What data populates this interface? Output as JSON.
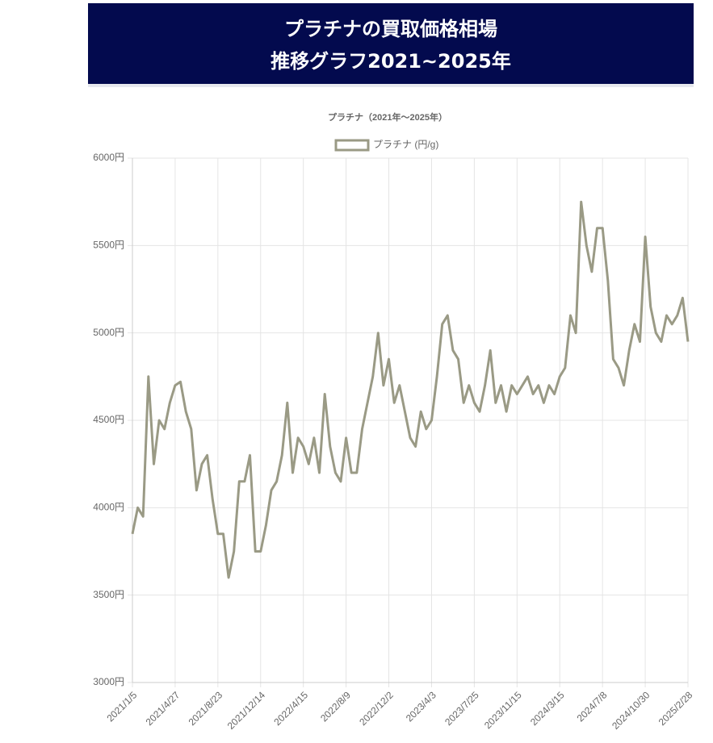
{
  "header": {
    "line1": "プラチナの買取価格相場",
    "line2": "推移グラフ2021~2025年"
  },
  "chart_data": {
    "type": "line",
    "title": "プラチナ（2021年〜2025年）",
    "categories": [
      "2021/1/5",
      null,
      null,
      null,
      null,
      null,
      null,
      null,
      "2021/4/27",
      null,
      null,
      null,
      null,
      null,
      null,
      null,
      "2021/8/23",
      null,
      null,
      null,
      null,
      null,
      null,
      null,
      "2021/12/14",
      null,
      null,
      null,
      null,
      null,
      null,
      null,
      "2022/4/15",
      null,
      null,
      null,
      null,
      null,
      null,
      null,
      "2022/8/9",
      null,
      null,
      null,
      null,
      null,
      null,
      null,
      "2022/12/2",
      null,
      null,
      null,
      null,
      null,
      null,
      null,
      "2023/4/3",
      null,
      null,
      null,
      null,
      null,
      null,
      null,
      "2023/7/25",
      null,
      null,
      null,
      null,
      null,
      null,
      null,
      "2023/11/15",
      null,
      null,
      null,
      null,
      null,
      null,
      null,
      "2024/3/15",
      null,
      null,
      null,
      null,
      null,
      null,
      null,
      "2024/7/8",
      null,
      null,
      null,
      null,
      null,
      null,
      null,
      "2024/10/30",
      null,
      null,
      null,
      null,
      null,
      null,
      null,
      "2025/2/28"
    ],
    "series": [
      {
        "name": "プラチナ (円/g)",
        "color": "#9a9a85",
        "values": [
          3850,
          4000,
          3950,
          4750,
          4250,
          4500,
          4450,
          4600,
          4700,
          4720,
          4550,
          4450,
          4100,
          4250,
          4300,
          4050,
          3850,
          3850,
          3600,
          3750,
          4150,
          4150,
          4300,
          3750,
          3750,
          3900,
          4100,
          4150,
          4300,
          4600,
          4200,
          4400,
          4350,
          4250,
          4400,
          4200,
          4650,
          4350,
          4200,
          4150,
          4400,
          4200,
          4200,
          4450,
          4600,
          4750,
          5000,
          4700,
          4850,
          4600,
          4700,
          4550,
          4400,
          4350,
          4550,
          4450,
          4500,
          4750,
          5050,
          5100,
          4900,
          4850,
          4600,
          4700,
          4600,
          4550,
          4700,
          4900,
          4600,
          4700,
          4550,
          4700,
          4650,
          4700,
          4750,
          4650,
          4700,
          4600,
          4700,
          4650,
          4750,
          4800,
          5100,
          5000,
          5750,
          5500,
          5350,
          5600,
          5600,
          5300,
          4850,
          4800,
          4700,
          4900,
          5050,
          4950,
          5550,
          5150,
          5000,
          4950,
          5100,
          5050,
          5100,
          5200,
          4950
        ]
      }
    ],
    "ylim": [
      3000,
      6000
    ],
    "yticks": [
      {
        "value": 3000,
        "label": "3000円"
      },
      {
        "value": 3500,
        "label": "3500円"
      },
      {
        "value": 4000,
        "label": "4000円"
      },
      {
        "value": 4500,
        "label": "4500円"
      },
      {
        "value": 5000,
        "label": "5000円"
      },
      {
        "value": 5500,
        "label": "5500円"
      },
      {
        "value": 6000,
        "label": "6000円"
      }
    ],
    "grid": true,
    "legend": "top"
  }
}
